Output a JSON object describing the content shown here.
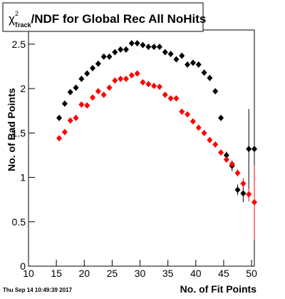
{
  "chart_data": {
    "type": "scatter",
    "title": {
      "symbol": "χ",
      "superscript": "2",
      "subscript": "Track",
      "text": "/NDF for Global Rec All NoHits"
    },
    "x_label": "No. of Fit Points",
    "y_label": "No. of Bad Points",
    "timestamp": "Thu Sep 14 10:49:39 2017",
    "x": [
      15.5,
      16.5,
      17.5,
      18.5,
      19.5,
      20.5,
      21.5,
      22.5,
      23.5,
      24.5,
      25.5,
      26.5,
      27.5,
      28.5,
      29.5,
      30.5,
      31.5,
      32.5,
      33.5,
      34.5,
      35.5,
      36.5,
      37.5,
      38.5,
      39.5,
      40.5,
      41.5,
      42.5,
      43.5,
      44.5,
      45.5,
      46.5,
      47.5,
      48.5,
      49.5,
      50.5
    ],
    "series": [
      {
        "name": "black",
        "color": "#000000",
        "values": [
          1.67,
          1.83,
          1.96,
          2.01,
          2.11,
          2.17,
          2.23,
          2.28,
          2.36,
          2.36,
          2.41,
          2.44,
          2.44,
          2.51,
          2.51,
          2.49,
          2.47,
          2.47,
          2.47,
          2.41,
          2.39,
          2.33,
          2.37,
          2.27,
          2.29,
          2.27,
          2.18,
          2.12,
          1.97,
          1.67,
          1.25,
          1.13,
          0.86,
          0.82,
          1.32,
          1.32
        ],
        "errors": [
          0.02,
          0.02,
          0.02,
          0.02,
          0.02,
          0.02,
          0.02,
          0.02,
          0.02,
          0.02,
          0.02,
          0.02,
          0.02,
          0.02,
          0.02,
          0.02,
          0.02,
          0.02,
          0.02,
          0.02,
          0.02,
          0.02,
          0.02,
          0.02,
          0.02,
          0.02,
          0.02,
          0.02,
          0.02,
          0.03,
          0.04,
          0.06,
          0.06,
          0.1,
          0.45,
          0.45
        ]
      },
      {
        "name": "red",
        "color": "#ff0000",
        "values": [
          1.44,
          1.51,
          1.64,
          1.67,
          1.82,
          1.81,
          1.9,
          1.97,
          1.93,
          2.01,
          2.09,
          2.11,
          2.11,
          2.15,
          2.17,
          2.07,
          2.05,
          2.03,
          2.02,
          1.93,
          1.89,
          1.89,
          1.74,
          1.71,
          1.63,
          1.56,
          1.5,
          1.42,
          1.37,
          1.28,
          1.2,
          1.15,
          1.05,
          0.93,
          0.81,
          0.72
        ],
        "errors": [
          0.02,
          0.02,
          0.02,
          0.02,
          0.02,
          0.02,
          0.02,
          0.02,
          0.02,
          0.02,
          0.02,
          0.02,
          0.02,
          0.02,
          0.02,
          0.02,
          0.02,
          0.02,
          0.02,
          0.02,
          0.02,
          0.02,
          0.02,
          0.02,
          0.02,
          0.02,
          0.02,
          0.02,
          0.02,
          0.02,
          0.03,
          0.03,
          0.04,
          0.06,
          0.08,
          0.42
        ]
      }
    ],
    "xlim": [
      10,
      50.5
    ],
    "ylim": [
      0,
      2.66
    ],
    "xticks": [
      10,
      15,
      20,
      25,
      30,
      35,
      40,
      45,
      50
    ],
    "yticks": [
      0,
      0.5,
      1,
      1.5,
      2,
      2.5
    ]
  }
}
